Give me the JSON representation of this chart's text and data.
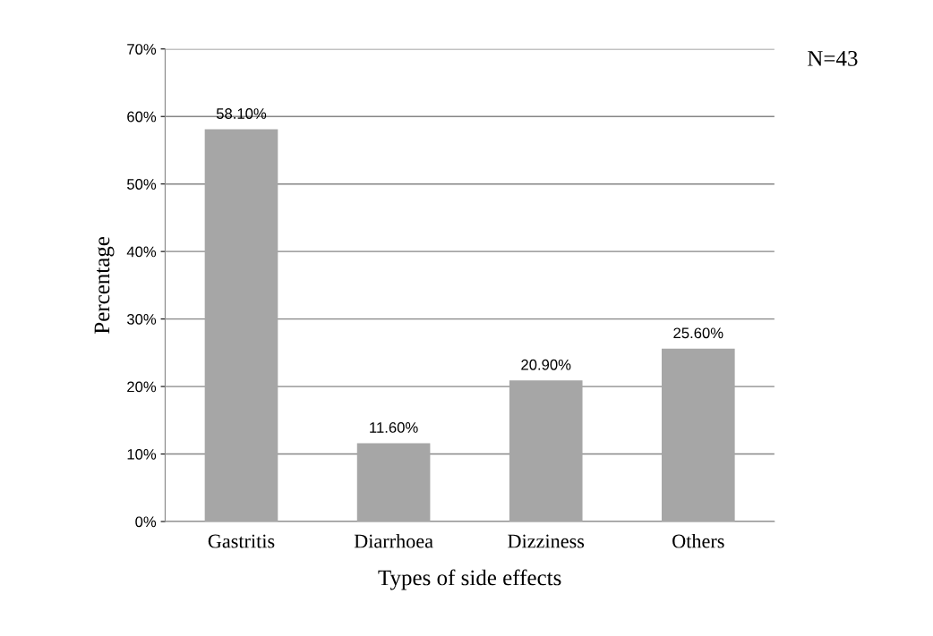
{
  "chart_data": {
    "type": "bar",
    "categories": [
      "Gastritis",
      "Diarrhoea",
      "Dizziness",
      "Others"
    ],
    "values": [
      58.1,
      11.6,
      20.9,
      25.6
    ],
    "value_labels": [
      "58.10%",
      "11.60%",
      "20.90%",
      "25.60%"
    ],
    "color": "#a6a6a6",
    "xlabel": "Types of side effects",
    "ylabel": "Percentage",
    "ylim": [
      0,
      70
    ],
    "yticks": [
      {
        "value": 0,
        "label": "0%"
      },
      {
        "value": 10,
        "label": "10%"
      },
      {
        "value": 20,
        "label": "20%"
      },
      {
        "value": 30,
        "label": "30%"
      },
      {
        "value": 40,
        "label": "40%"
      },
      {
        "value": 50,
        "label": "50%"
      },
      {
        "value": 60,
        "label": "60%"
      },
      {
        "value": 70,
        "label": "70%"
      }
    ],
    "grid": "y",
    "legend": false,
    "annotations": [
      "N=43"
    ]
  }
}
